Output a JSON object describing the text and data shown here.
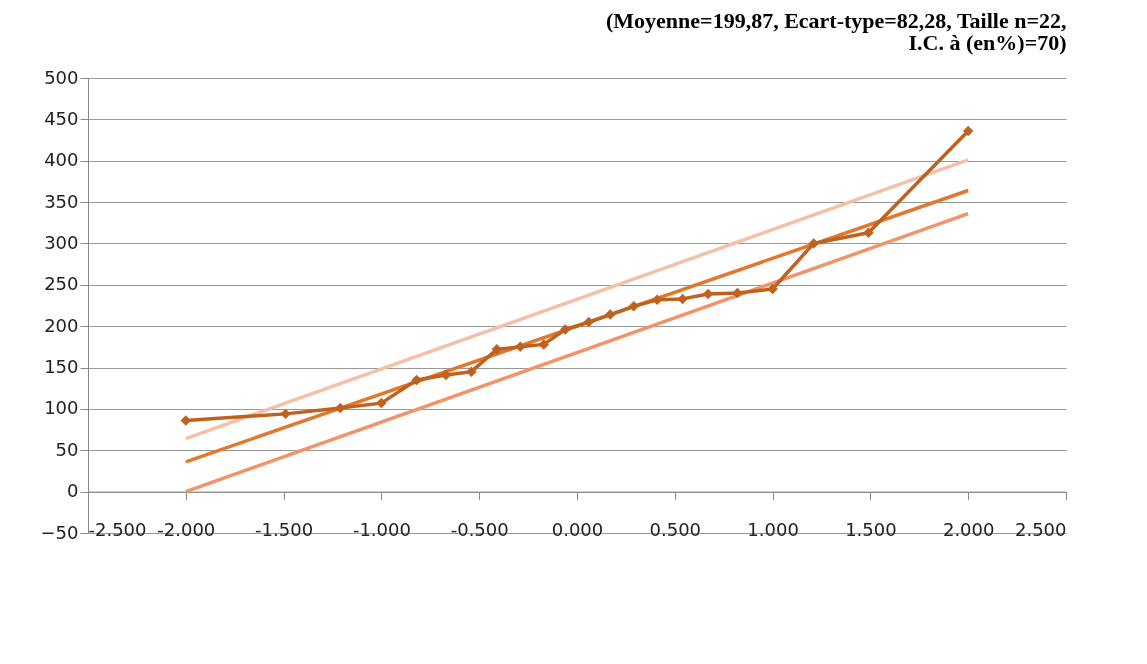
{
  "chart_data": {
    "type": "line",
    "title": "(Moyenne=199,87, Ecart-type=82,28, Taille n=22, I.C. à (en%)=70)",
    "series": [
      {
        "color": "#c0621f",
        "marker": "diamond",
        "x": [
          -2.0,
          -1.49,
          -1.21,
          -1.0,
          -0.82,
          -0.67,
          -0.54,
          -0.41,
          -0.29,
          -0.17,
          -0.06,
          0.06,
          0.17,
          0.29,
          0.41,
          0.54,
          0.67,
          0.82,
          1.0,
          1.21,
          1.49,
          2.0
        ],
        "values": [
          86,
          94,
          101,
          107,
          135,
          141,
          145,
          172,
          175,
          178,
          196,
          205,
          214,
          224,
          232,
          233,
          239,
          240,
          245,
          300,
          313,
          436
        ]
      },
      {
        "color": "#e2772e",
        "x": [
          -2.0,
          2.0
        ],
        "values": [
          36,
          364
        ]
      },
      {
        "color": "#f5c0a8",
        "x": [
          -2.0,
          2.0
        ],
        "values": [
          64,
          401
        ]
      },
      {
        "color": "#f0956a",
        "x": [
          -2.0,
          2.0
        ],
        "values": [
          0,
          336
        ]
      }
    ],
    "xlim": [
      -2.5,
      2.5
    ],
    "xticks": [
      {
        "value": -2.5,
        "label": "-2.500"
      },
      {
        "value": -2,
        "label": "-2.000"
      },
      {
        "value": -1.5,
        "label": "-1.500"
      },
      {
        "value": -1,
        "label": "-1.000"
      },
      {
        "value": -0.5,
        "label": "-0.500"
      },
      {
        "value": 0,
        "label": "0.000"
      },
      {
        "value": 0.5,
        "label": "0.500"
      },
      {
        "value": 1,
        "label": "1.000"
      },
      {
        "value": 1.5,
        "label": "1.500"
      },
      {
        "value": 2,
        "label": "2.000"
      },
      {
        "value": 2.5,
        "label": "2.500"
      }
    ],
    "ylim": [
      -50,
      500
    ],
    "yticks": [
      -50,
      0,
      50,
      100,
      150,
      200,
      250,
      300,
      350,
      400,
      450,
      500
    ],
    "grid": "y"
  }
}
